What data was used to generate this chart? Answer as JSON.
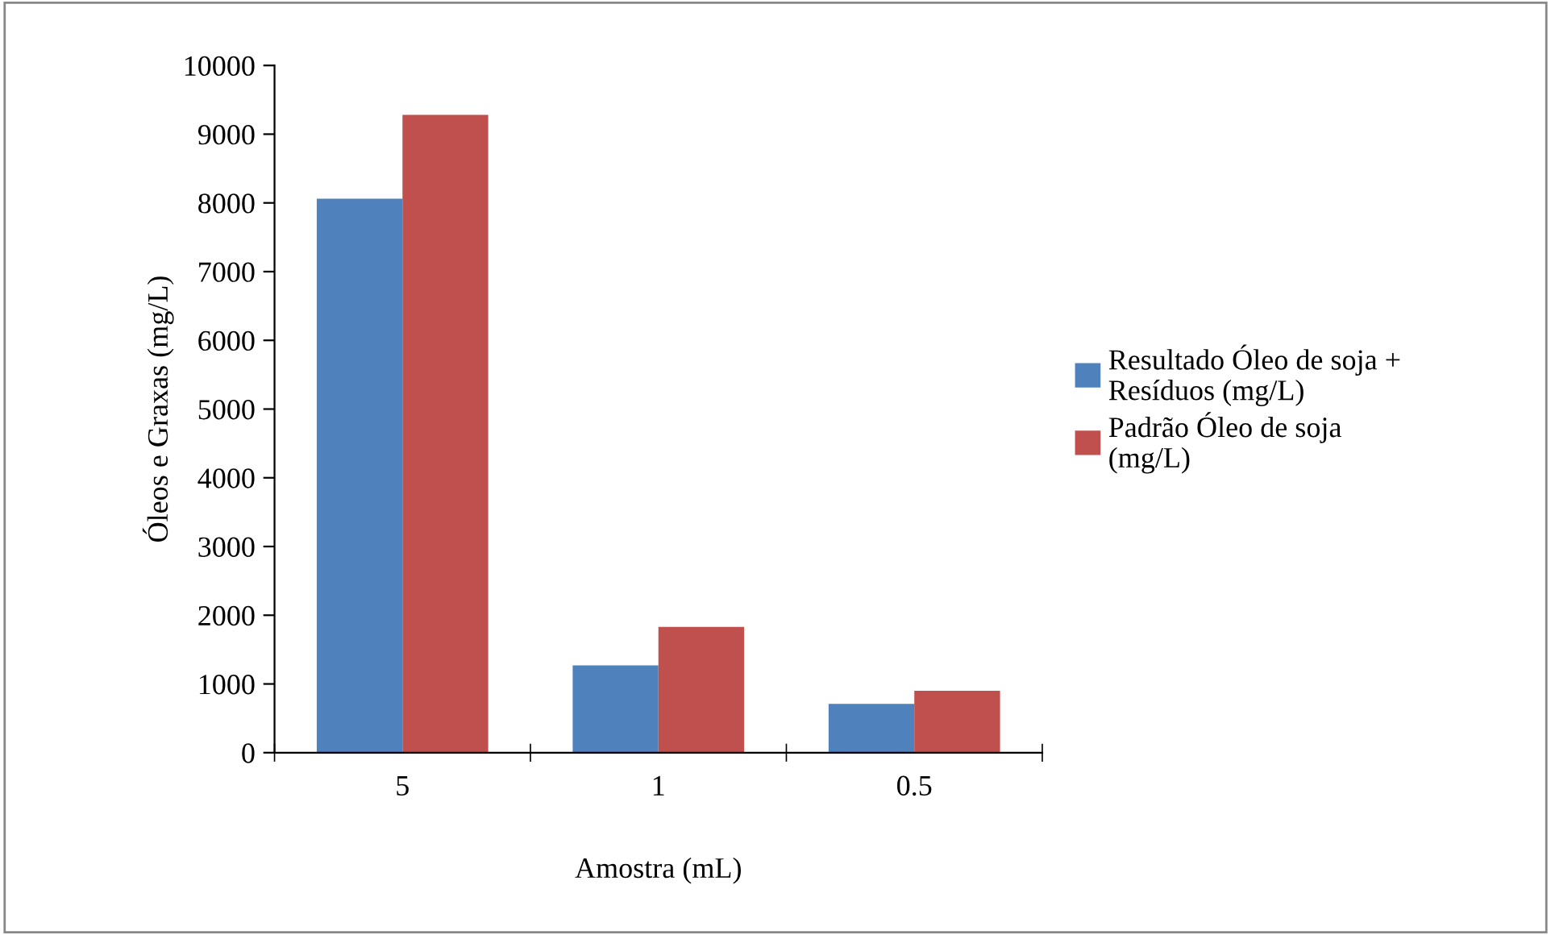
{
  "chart_data": {
    "type": "bar",
    "xlabel": "Amostra (mL)",
    "ylabel": "Óleos e Graxas (mg/L)",
    "categories": [
      "5",
      "1",
      "0.5"
    ],
    "series": [
      {
        "name": "Resultado Óleo de soja + Resíduos (mg/L)",
        "color": "#4f81bd",
        "values": [
          8060,
          1270,
          710
        ]
      },
      {
        "name": "Padrão Óleo de soja (mg/L)",
        "color": "#c0504d",
        "values": [
          9280,
          1830,
          900
        ]
      }
    ],
    "ylim": [
      0,
      10000
    ],
    "yticks": [
      0,
      1000,
      2000,
      3000,
      4000,
      5000,
      6000,
      7000,
      8000,
      9000,
      10000
    ],
    "grid": false,
    "legend": "right"
  }
}
